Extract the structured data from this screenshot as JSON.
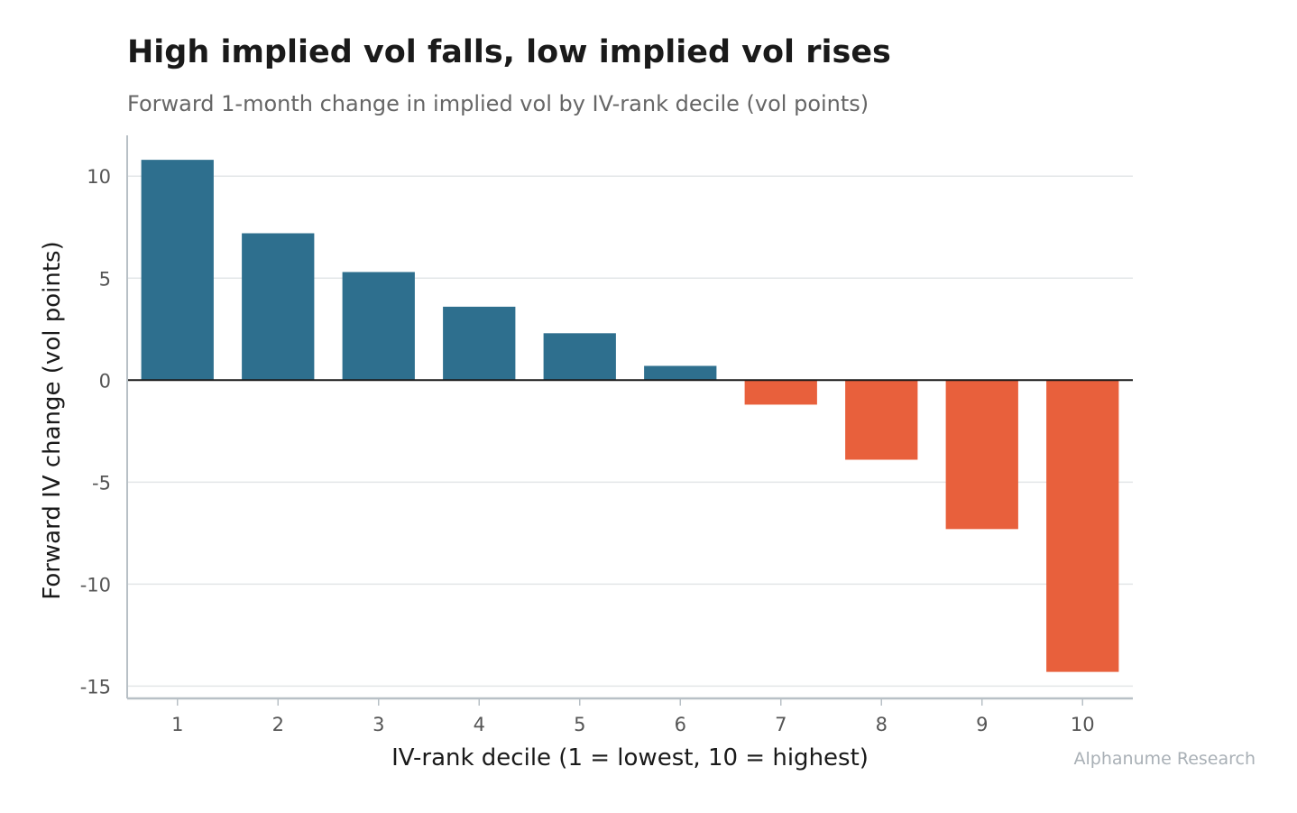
{
  "title": "High implied vol falls, low implied vol rises",
  "subtitle": "Forward 1-month change in implied vol by IV-rank decile (vol points)",
  "source": "Alphanume Research",
  "chart_data": {
    "type": "bar",
    "categories": [
      "1",
      "2",
      "3",
      "4",
      "5",
      "6",
      "7",
      "8",
      "9",
      "10"
    ],
    "values": [
      10.8,
      7.2,
      5.3,
      3.6,
      2.3,
      0.7,
      -1.2,
      -3.9,
      -7.3,
      -14.3
    ],
    "xlabel": "IV-rank decile (1 = lowest, 10 = highest)",
    "ylabel": "Forward IV change (vol points)",
    "ylim": [
      -15.6,
      12
    ],
    "yticks": [
      10,
      5,
      0,
      -5,
      -10,
      -15
    ],
    "ytick_labels": [
      "10",
      "5",
      "0",
      "-5",
      "-10",
      "-15"
    ],
    "grid": true,
    "colors": {
      "positive": "#2e6f8e",
      "negative": "#e8603c",
      "zero_line": "#1a1a1a",
      "grid": "#e3e6e8",
      "axis": "#b8c0c6"
    }
  }
}
